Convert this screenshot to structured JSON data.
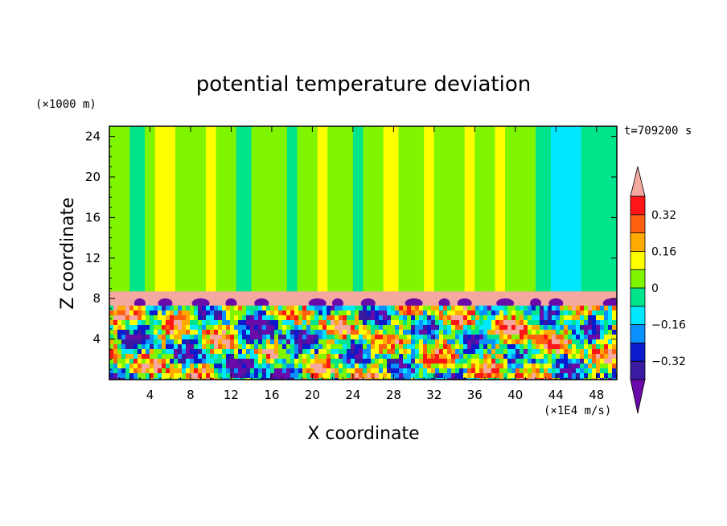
{
  "chart_data": {
    "type": "heatmap",
    "title": "potential temperature deviation",
    "xlabel": "X coordinate",
    "ylabel": "Z coordinate",
    "x_unit": "(×1E4 m/s)",
    "y_unit": "(×1000 m)",
    "time_label": "t=709200 s",
    "xlim": [
      0,
      50
    ],
    "ylim": [
      0,
      25
    ],
    "x_ticks": [
      4,
      8,
      12,
      16,
      20,
      24,
      28,
      32,
      36,
      40,
      44,
      48
    ],
    "y_ticks": [
      4,
      8,
      12,
      16,
      20,
      24
    ],
    "colorbar": {
      "levels": [
        -0.4,
        -0.32,
        -0.24,
        -0.16,
        -0.08,
        0,
        0.08,
        0.16,
        0.24,
        0.32,
        0.4
      ],
      "tick_labels": [
        "0.32",
        "0.16",
        "0",
        "−0.16",
        "−0.32"
      ],
      "tick_values": [
        0.32,
        0.16,
        0,
        -0.16,
        -0.32
      ],
      "colors": [
        "#6a0aa8",
        "#3a1aa0",
        "#0a1acc",
        "#0a90ff",
        "#00e8ff",
        "#00e58c",
        "#7ff500",
        "#ffff00",
        "#ffaa00",
        "#ff6010",
        "#ff1515",
        "#f4a8a0"
      ]
    },
    "upper_columns": [
      {
        "x": [
          0,
          2
        ],
        "value": 0.04
      },
      {
        "x": [
          2,
          3.5
        ],
        "value": -0.04
      },
      {
        "x": [
          3.5,
          4.5
        ],
        "value": 0.04
      },
      {
        "x": [
          4.5,
          6.5
        ],
        "value": 0.12
      },
      {
        "x": [
          6.5,
          9.5
        ],
        "value": 0.04
      },
      {
        "x": [
          9.5,
          10.5
        ],
        "value": 0.12
      },
      {
        "x": [
          10.5,
          12.5
        ],
        "value": 0.04
      },
      {
        "x": [
          12.5,
          14
        ],
        "value": -0.04
      },
      {
        "x": [
          14,
          17.5
        ],
        "value": 0.04
      },
      {
        "x": [
          17.5,
          18.5
        ],
        "value": -0.04
      },
      {
        "x": [
          18.5,
          20.5
        ],
        "value": 0.04
      },
      {
        "x": [
          20.5,
          21.5
        ],
        "value": 0.12
      },
      {
        "x": [
          21.5,
          24
        ],
        "value": 0.04
      },
      {
        "x": [
          24,
          25
        ],
        "value": -0.04
      },
      {
        "x": [
          25,
          27
        ],
        "value": 0.04
      },
      {
        "x": [
          27,
          28.5
        ],
        "value": 0.12
      },
      {
        "x": [
          28.5,
          31
        ],
        "value": 0.04
      },
      {
        "x": [
          31,
          32
        ],
        "value": 0.12
      },
      {
        "x": [
          32,
          35
        ],
        "value": 0.04
      },
      {
        "x": [
          35,
          36
        ],
        "value": 0.12
      },
      {
        "x": [
          36,
          38
        ],
        "value": 0.04
      },
      {
        "x": [
          38,
          39
        ],
        "value": 0.12
      },
      {
        "x": [
          39,
          42
        ],
        "value": 0.04
      },
      {
        "x": [
          42,
          43.5
        ],
        "value": -0.04
      },
      {
        "x": [
          43.5,
          46.5
        ],
        "value": -0.12
      },
      {
        "x": [
          46.5,
          50
        ],
        "value": -0.04
      }
    ],
    "layer_band": {
      "z": [
        7.3,
        8.7
      ],
      "value": 0.4
    },
    "lower_region": {
      "z": [
        0,
        7.3
      ]
    }
  }
}
